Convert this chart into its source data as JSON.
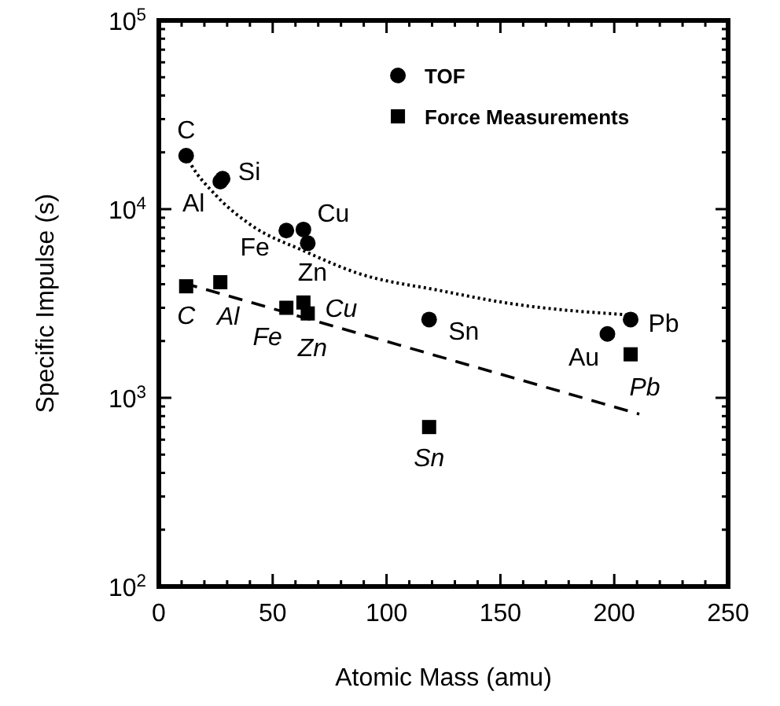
{
  "chart_data": {
    "type": "scatter",
    "xlabel": "Atomic Mass (amu)",
    "ylabel": "Specific Impulse (s)",
    "log": "y",
    "legend": "top right",
    "grid": false,
    "xlim": [
      0,
      250
    ],
    "ylim": [
      100,
      100000
    ],
    "xticks": [
      0,
      {
        "value": 10,
        "label": null
      },
      {
        "value": 20,
        "label": null
      },
      {
        "value": 30,
        "label": null
      },
      {
        "value": 40,
        "label": null
      },
      50,
      {
        "value": 60,
        "label": null
      },
      {
        "value": 70,
        "label": null
      },
      {
        "value": 80,
        "label": null
      },
      {
        "value": 90,
        "label": null
      },
      100,
      {
        "value": 110,
        "label": null
      },
      {
        "value": 120,
        "label": null
      },
      {
        "value": 130,
        "label": null
      },
      {
        "value": 140,
        "label": null
      },
      150,
      {
        "value": 160,
        "label": null
      },
      {
        "value": 170,
        "label": null
      },
      {
        "value": 180,
        "label": null
      },
      {
        "value": 190,
        "label": null
      },
      200,
      {
        "value": 210,
        "label": null
      },
      {
        "value": 220,
        "label": null
      },
      {
        "value": 230,
        "label": null
      },
      {
        "value": 240,
        "label": null
      },
      250
    ],
    "yticks": [
      {
        "value": 100,
        "label": "10$^{2}$"
      },
      {
        "value": 200,
        "label": null
      },
      {
        "value": 300,
        "label": null
      },
      {
        "value": 400,
        "label": null
      },
      {
        "value": 500,
        "label": null
      },
      {
        "value": 600,
        "label": null
      },
      {
        "value": 700,
        "label": null
      },
      {
        "value": 800,
        "label": null
      },
      {
        "value": 900,
        "label": null
      },
      {
        "value": 1000,
        "label": "10$^{3}$"
      },
      {
        "value": 2000,
        "label": null
      },
      {
        "value": 3000,
        "label": null
      },
      {
        "value": 4000,
        "label": null
      },
      {
        "value": 5000,
        "label": null
      },
      {
        "value": 6000,
        "label": null
      },
      {
        "value": 7000,
        "label": null
      },
      {
        "value": 8000,
        "label": null
      },
      {
        "value": 9000,
        "label": null
      },
      {
        "value": 10000,
        "label": "10$^{4}$"
      },
      {
        "value": 20000,
        "label": null
      },
      {
        "value": 30000,
        "label": null
      },
      {
        "value": 40000,
        "label": null
      },
      {
        "value": 50000,
        "label": null
      },
      {
        "value": 60000,
        "label": null
      },
      {
        "value": 70000,
        "label": null
      },
      {
        "value": 80000,
        "label": null
      },
      {
        "value": 90000,
        "label": null
      },
      {
        "value": 100000,
        "label": "10$^{5}$"
      }
    ],
    "series": [
      {
        "name": "TOF",
        "marker": "circle",
        "color": "#000000",
        "x": [
          12,
          27,
          28,
          56,
          63.5,
          65.4,
          118.7,
          197,
          207.2
        ],
        "values": [
          19200,
          14000,
          14500,
          7700,
          7800,
          6600,
          2600,
          2180,
          2600
        ]
      },
      {
        "name": "Force Measurements",
        "marker": "square",
        "color": "#000000",
        "x": [
          12,
          27,
          56,
          63.5,
          65.4,
          118.7,
          207.2
        ],
        "values": [
          3900,
          4100,
          3000,
          3200,
          2800,
          700,
          1700
        ]
      },
      {
        "type": "line",
        "line_style": "dotted",
        "color": "#000000",
        "x": [
          12,
          14.3,
          24.6,
          40.7,
          63.8,
          86.8,
          123.6,
          155.9,
          206.5
        ],
        "values": [
          19200,
          17100,
          12000,
          8200,
          6000,
          4600,
          3700,
          3140,
          2750
        ]
      },
      {
        "type": "line",
        "line_style": "dashed",
        "color": "#000000",
        "x": [
          10.8,
          211
        ],
        "values": [
          4060,
          820
        ]
      }
    ],
    "annotations": [
      {
        "text": "C",
        "x": 12,
        "y": 19200
      },
      {
        "text": "Si",
        "x": 28,
        "y": 14500
      },
      {
        "text": "Al",
        "x": 27,
        "y": 14000
      },
      {
        "text": "Cu",
        "x": 63.5,
        "y": 7800
      },
      {
        "text": "Fe",
        "x": 56,
        "y": 7700
      },
      {
        "text": "Zn",
        "x": 65.4,
        "y": 6600
      },
      {
        "text": "Sn",
        "x": 118.7,
        "y": 2600
      },
      {
        "text": "Au",
        "x": 197,
        "y": 2180
      },
      {
        "text": "Pb",
        "x": 207.2,
        "y": 2600
      },
      {
        "text": "C",
        "x": 12,
        "y": 3900
      },
      {
        "text": "Al",
        "x": 27,
        "y": 4100
      },
      {
        "text": "Cu",
        "x": 63.5,
        "y": 3200
      },
      {
        "text": "Fe",
        "x": 56,
        "y": 3000
      },
      {
        "text": "Zn",
        "x": 65.4,
        "y": 2800
      },
      {
        "text": "Sn",
        "x": 118.7,
        "y": 700
      },
      {
        "text": "Pb",
        "x": 207.2,
        "y": 1700
      }
    ]
  }
}
